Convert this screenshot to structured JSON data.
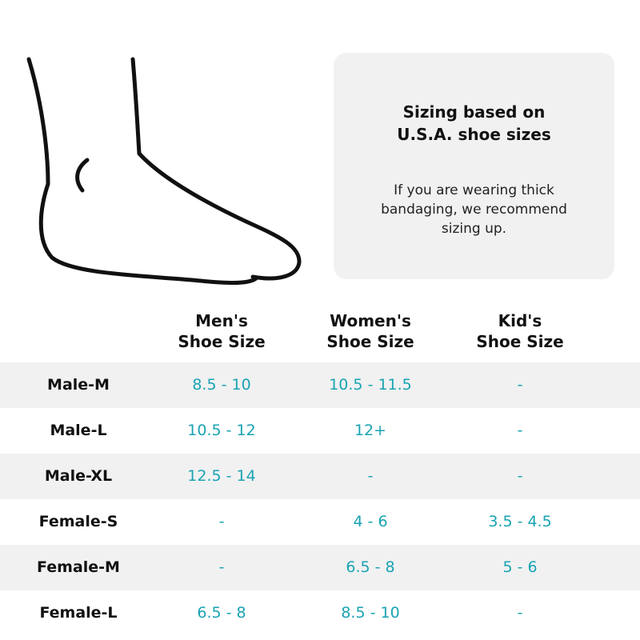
{
  "info": {
    "title": "Sizing based on\nU.S.A. shoe sizes",
    "note": "If you are wearing thick\nbandaging, we recommend\nsizing up."
  },
  "table": {
    "columns": [
      "Men's\nShoe Size",
      "Women's\nShoe Size",
      "Kid's\nShoe Size"
    ],
    "rows": [
      {
        "label": "Male-M",
        "mens": "8.5 - 10",
        "womens": "10.5 - 11.5",
        "kids": "-"
      },
      {
        "label": "Male-L",
        "mens": "10.5 - 12",
        "womens": "12+",
        "kids": "-"
      },
      {
        "label": "Male-XL",
        "mens": "12.5 - 14",
        "womens": "-",
        "kids": "-"
      },
      {
        "label": "Female-S",
        "mens": "-",
        "womens": "4 - 6",
        "kids": "3.5 - 4.5"
      },
      {
        "label": "Female-M",
        "mens": "-",
        "womens": "6.5 - 8",
        "kids": "5 - 6"
      },
      {
        "label": "Female-L",
        "mens": "6.5 - 8",
        "womens": "8.5 - 10",
        "kids": "-"
      }
    ]
  },
  "colors": {
    "value_text": "#1aa3b3",
    "shaded_row": "#f1f1f1",
    "card_background": "#f1f1f1"
  },
  "icons": {
    "foot": "foot-outline-icon"
  }
}
